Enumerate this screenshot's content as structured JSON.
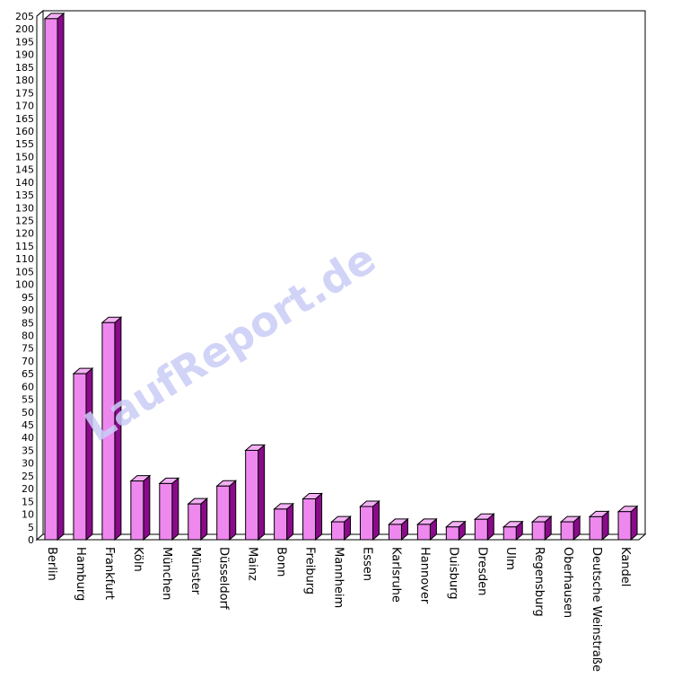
{
  "chart_data": {
    "type": "bar",
    "title": "",
    "xlabel": "",
    "ylabel": "",
    "ylim": [
      0,
      205
    ],
    "ytick_step": 5,
    "grid": true,
    "watermark": "LaufReport.de",
    "categories": [
      "Berlin",
      "Hamburg",
      "Frankfurt",
      "Köln",
      "München",
      "Münster",
      "Düsseldorf",
      "Mainz",
      "Bonn",
      "Freiburg",
      "Mannheim",
      "Essen",
      "Karlsruhe",
      "Hannover",
      "Duisburg",
      "Dresden",
      "Ulm",
      "Regensburg",
      "Oberhausen",
      "Deutsche Weinstraße",
      "Kandel"
    ],
    "values": [
      204,
      65,
      85,
      23,
      22,
      14,
      21,
      35,
      12,
      16,
      7,
      13,
      6,
      6,
      5,
      8,
      5,
      7,
      7,
      9,
      11
    ],
    "colors": {
      "front": "#ee88ee",
      "side": "#8b0a8b",
      "top": "#f4b0f4",
      "outline": "#000000",
      "grid": "#000000"
    }
  }
}
